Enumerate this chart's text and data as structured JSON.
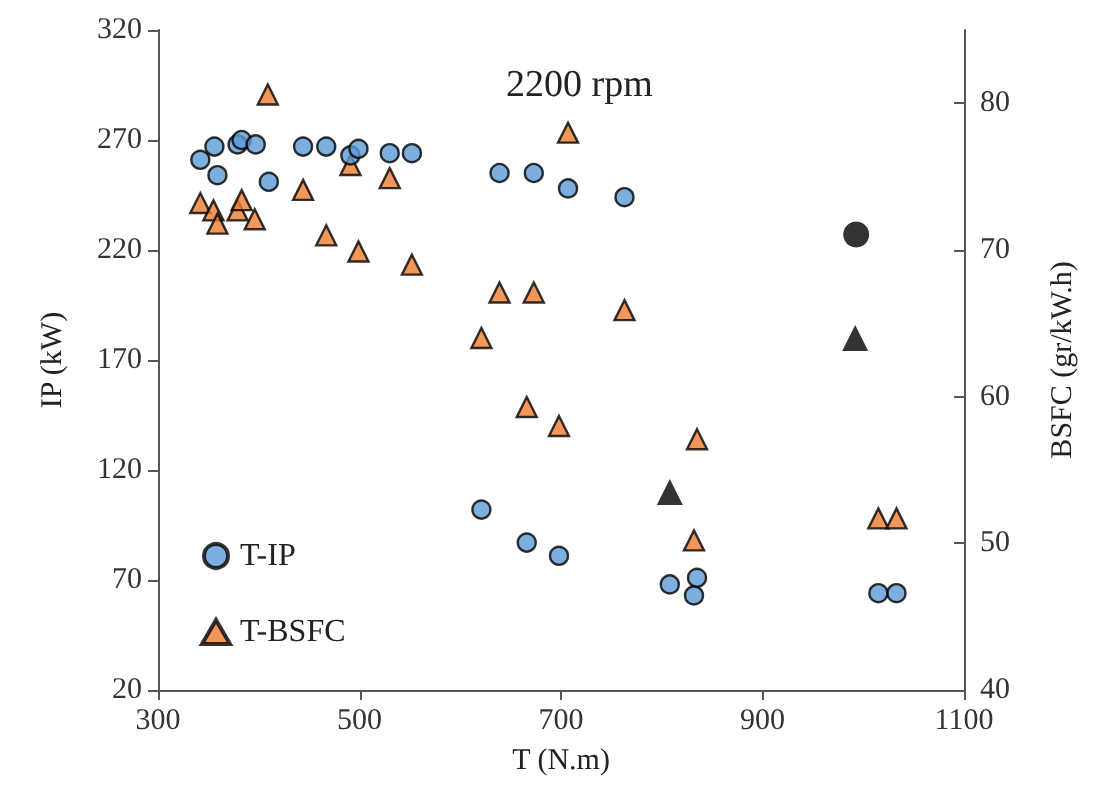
{
  "chart_data": {
    "type": "scatter",
    "title": "2200 rpm",
    "xlabel": "T (N.m)",
    "ylabel": "IP (kW)",
    "y2label": "BSFC (gr/kW.h)",
    "xlim": [
      300,
      1100
    ],
    "xticks": [
      300,
      500,
      700,
      900,
      1100
    ],
    "ylim": [
      20,
      320
    ],
    "yticks": [
      20,
      70,
      120,
      170,
      220,
      270,
      320
    ],
    "y2lim": [
      40,
      85
    ],
    "y2ticks": [
      40,
      50,
      60,
      70,
      80
    ],
    "grid": false,
    "legend": "bottom left",
    "series": [
      {
        "name": "T-IP",
        "color": "#5b9bd5",
        "marker": "circle",
        "x": [
          342,
          356,
          359,
          379,
          383,
          397,
          410,
          444,
          467,
          491,
          499,
          530,
          552,
          621,
          639,
          666,
          673,
          698,
          707,
          763,
          808,
          832,
          835,
          1015,
          1033
        ],
        "values": [
          261,
          267,
          254,
          268,
          270,
          268,
          251,
          267,
          267,
          263,
          266,
          264,
          264,
          102,
          255,
          87,
          255,
          81,
          248,
          244,
          68,
          63,
          71,
          64,
          64
        ]
      },
      {
        "name": "T-BSFC",
        "color": "#ed7d31",
        "marker": "triangle",
        "axis": "y2",
        "x": [
          342,
          355,
          359,
          379,
          383,
          396,
          409,
          444,
          467,
          491,
          499,
          530,
          552,
          621,
          639,
          666,
          673,
          698,
          707,
          763,
          832,
          835,
          1015,
          1033
        ],
        "values": [
          73.2,
          72.7,
          71.8,
          72.7,
          73.4,
          72.1,
          80.6,
          74.1,
          71.0,
          75.8,
          69.9,
          74.9,
          69.0,
          64.0,
          67.1,
          59.3,
          67.1,
          58.0,
          78.0,
          65.9,
          50.2,
          57.1,
          51.7,
          51.7
        ]
      },
      {
        "color": "#000000",
        "marker": "circle",
        "x": [
          993
        ],
        "values": [
          227
        ]
      },
      {
        "color": "#000000",
        "marker": "triangle",
        "axis": "y2",
        "x": [
          808,
          992
        ],
        "values": [
          53.5,
          64.0
        ]
      }
    ]
  }
}
